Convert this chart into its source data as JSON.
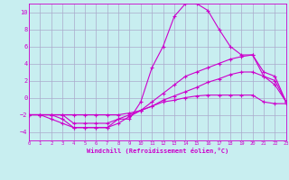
{
  "xlabel": "Windchill (Refroidissement éolien,°C)",
  "xlim": [
    0,
    23
  ],
  "ylim": [
    -5,
    11
  ],
  "yticks": [
    -4,
    -2,
    0,
    2,
    4,
    6,
    8,
    10
  ],
  "xticks": [
    0,
    1,
    2,
    3,
    4,
    5,
    6,
    7,
    8,
    9,
    10,
    11,
    12,
    13,
    14,
    15,
    16,
    17,
    18,
    19,
    20,
    21,
    22,
    23
  ],
  "bg_color": "#c8eef0",
  "line_color": "#cc00cc",
  "grid_color": "#aaaacc",
  "line1_x": [
    0,
    1,
    2,
    3,
    4,
    5,
    6,
    7,
    8,
    9,
    10,
    11,
    12,
    13,
    14,
    15,
    16,
    17,
    18,
    19,
    20,
    21,
    22,
    23
  ],
  "line1_y": [
    -2,
    -2,
    -2.5,
    -3,
    -3.5,
    -3.5,
    -3.5,
    -3.5,
    -2.5,
    -2.5,
    -0.5,
    3.5,
    6,
    9.5,
    11,
    11,
    10.2,
    8,
    6,
    5,
    5,
    2.5,
    2,
    -0.5
  ],
  "line2_x": [
    0,
    1,
    2,
    3,
    4,
    5,
    6,
    7,
    8,
    9,
    10,
    11,
    12,
    13,
    14,
    15,
    16,
    17,
    18,
    19,
    20,
    21,
    22,
    23
  ],
  "line2_y": [
    -2,
    -2,
    -2,
    -2.5,
    -3.5,
    -3.5,
    -3.5,
    -3.5,
    -3,
    -2.2,
    -1.5,
    -0.5,
    0.5,
    1.5,
    2.5,
    3,
    3.5,
    4,
    4.5,
    4.8,
    5,
    3,
    2.5,
    -0.5
  ],
  "line3_x": [
    0,
    1,
    2,
    3,
    4,
    5,
    6,
    7,
    8,
    9,
    10,
    11,
    12,
    13,
    14,
    15,
    16,
    17,
    18,
    19,
    20,
    21,
    22,
    23
  ],
  "line3_y": [
    -2,
    -2,
    -2,
    -2,
    -3,
    -3,
    -3,
    -3,
    -2.5,
    -2,
    -1.5,
    -1,
    -0.3,
    0.2,
    0.7,
    1.2,
    1.8,
    2.2,
    2.7,
    3,
    3,
    2.5,
    1.5,
    -0.5
  ],
  "line4_x": [
    0,
    1,
    2,
    3,
    4,
    5,
    6,
    7,
    8,
    9,
    10,
    11,
    12,
    13,
    14,
    15,
    16,
    17,
    18,
    19,
    20,
    21,
    22,
    23
  ],
  "line4_y": [
    -2,
    -2,
    -2,
    -2,
    -2,
    -2,
    -2,
    -2,
    -2,
    -1.8,
    -1.5,
    -1,
    -0.5,
    -0.3,
    0,
    0.2,
    0.3,
    0.3,
    0.3,
    0.3,
    0.3,
    -0.5,
    -0.7,
    -0.7
  ]
}
